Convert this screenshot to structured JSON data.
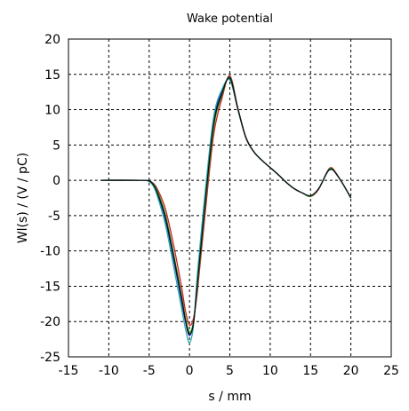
{
  "chart_data": {
    "type": "line",
    "title": "Wake potential",
    "xlabel": "s / mm",
    "ylabel": "Wl(s) / (V / pC)",
    "xlim": [
      -15,
      25
    ],
    "ylim": [
      -25,
      20
    ],
    "xticks": [
      -15,
      -10,
      -5,
      0,
      5,
      10,
      15,
      20,
      25
    ],
    "yticks": [
      -25,
      -20,
      -15,
      -10,
      -5,
      0,
      5,
      10,
      15,
      20
    ],
    "xtick_labels": [
      "-15",
      "-10",
      "-5",
      "0",
      "5",
      "10",
      "15",
      "20",
      "25"
    ],
    "ytick_labels": [
      "-25",
      "-20",
      "-15",
      "-10",
      "-5",
      "0",
      "5",
      "10",
      "15",
      "20"
    ],
    "grid": true,
    "series": [
      {
        "color": "#2222cc",
        "x": [
          -11,
          -6,
          -5,
          -4.5,
          -4,
          -3,
          -2,
          -1,
          -0.5,
          0,
          0.5,
          1,
          2,
          3,
          4,
          5,
          6,
          7,
          8,
          9,
          10,
          11,
          12,
          13,
          14,
          15,
          16,
          17,
          17.5,
          18,
          19,
          20
        ],
        "y": [
          0,
          0,
          -0.1,
          -0.6,
          -1.8,
          -5.5,
          -11,
          -17,
          -20,
          -22,
          -20,
          -14,
          -2,
          8.5,
          12.5,
          14.3,
          10,
          6,
          4,
          2.8,
          1.8,
          0.8,
          -0.3,
          -1.2,
          -1.8,
          -2.2,
          -1.2,
          1.0,
          1.6,
          1.2,
          -0.5,
          -2.5
        ]
      },
      {
        "color": "#cc2222",
        "x": [
          -11,
          -6,
          -5,
          -4.5,
          -4,
          -3,
          -2,
          -1,
          -0.5,
          0,
          0.5,
          1,
          2,
          3,
          4,
          5,
          6,
          7,
          8,
          9,
          10,
          11,
          12,
          13,
          14,
          15,
          16,
          17,
          17.5,
          18,
          19,
          20
        ],
        "y": [
          0,
          0,
          -0.1,
          -0.4,
          -1.2,
          -4.0,
          -9.0,
          -15.0,
          -18.5,
          -20.5,
          -19.5,
          -15.5,
          -4.0,
          6.5,
          11.5,
          14.8,
          10.2,
          6.1,
          4.0,
          2.8,
          1.8,
          0.8,
          -0.3,
          -1.2,
          -1.8,
          -2.3,
          -1.3,
          1.1,
          1.8,
          1.3,
          -0.5,
          -2.5
        ]
      },
      {
        "color": "#22aa22",
        "x": [
          -11,
          -6,
          -5,
          -4.5,
          -4,
          -3,
          -2,
          -1,
          -0.5,
          0,
          0.5,
          1,
          2,
          3,
          4,
          5,
          6,
          7,
          8,
          9,
          10,
          11,
          12,
          13,
          14,
          15,
          16,
          17,
          17.5,
          18,
          19,
          20
        ],
        "y": [
          0,
          0,
          -0.1,
          -0.5,
          -1.5,
          -4.8,
          -10.2,
          -16.2,
          -19.5,
          -21.5,
          -20.0,
          -14.8,
          -3.0,
          7.5,
          12.0,
          14.6,
          10.1,
          6.0,
          4.0,
          2.8,
          1.8,
          0.8,
          -0.3,
          -1.2,
          -1.8,
          -2.3,
          -1.2,
          1.0,
          1.7,
          1.2,
          -0.5,
          -2.5
        ]
      },
      {
        "color": "#22aaaa",
        "x": [
          -11,
          -6,
          -5,
          -4.5,
          -4,
          -3,
          -2,
          -1,
          -0.5,
          0,
          0.5,
          1,
          2,
          3,
          4,
          5,
          6,
          7,
          8,
          9,
          10,
          11,
          12,
          13,
          14,
          15,
          16,
          17,
          17.5,
          18,
          19,
          20
        ],
        "y": [
          0,
          0,
          -0.2,
          -0.8,
          -2.2,
          -6.2,
          -12.0,
          -18.0,
          -21.0,
          -23.0,
          -20.5,
          -13.0,
          -1.0,
          9.0,
          12.8,
          14.2,
          10.0,
          6.0,
          4.0,
          2.8,
          1.8,
          0.8,
          -0.3,
          -1.2,
          -1.8,
          -2.2,
          -1.2,
          1.0,
          1.5,
          1.2,
          -0.5,
          -2.5
        ]
      },
      {
        "color": "#111111",
        "x": [
          -11,
          -6,
          -5,
          -4.5,
          -4,
          -3,
          -2,
          -1,
          -0.5,
          0,
          0.5,
          1,
          2,
          3,
          4,
          5,
          6,
          7,
          8,
          9,
          10,
          11,
          12,
          13,
          14,
          15,
          16,
          17,
          17.5,
          18,
          19,
          20
        ],
        "y": [
          0,
          0,
          -0.1,
          -0.6,
          -1.7,
          -5.2,
          -10.6,
          -16.6,
          -19.8,
          -21.8,
          -20.2,
          -14.4,
          -2.5,
          8.0,
          12.2,
          14.5,
          10.1,
          6.0,
          4.0,
          2.8,
          1.8,
          0.8,
          -0.3,
          -1.2,
          -1.8,
          -2.2,
          -1.2,
          1.0,
          1.6,
          1.2,
          -0.5,
          -2.5
        ]
      }
    ]
  }
}
